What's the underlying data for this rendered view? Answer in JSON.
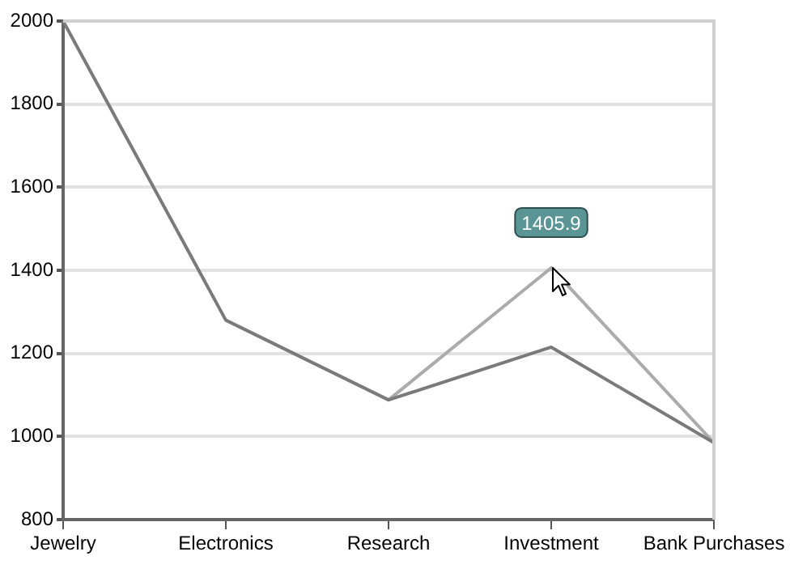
{
  "chart_data": {
    "type": "line",
    "categories": [
      "Jewelry",
      "Electronics",
      "Research",
      "Investment",
      "Bank Purchases"
    ],
    "series": [
      {
        "color": "#7a7a7a",
        "values": [
          2000,
          1280,
          1088,
          1215,
          985
        ]
      },
      {
        "color": "#ababab",
        "values": [
          null,
          null,
          1088,
          1405.9,
          985
        ]
      }
    ],
    "ylim": [
      800,
      2000
    ],
    "yticks": [
      800,
      1000,
      1200,
      1400,
      1600,
      1800,
      2000
    ],
    "grid": "y",
    "legend": false,
    "marker": "none",
    "line_style": "solid",
    "annotations": [
      {
        "text": "1405.9",
        "x": "Investment",
        "y": 1405.9
      }
    ]
  }
}
